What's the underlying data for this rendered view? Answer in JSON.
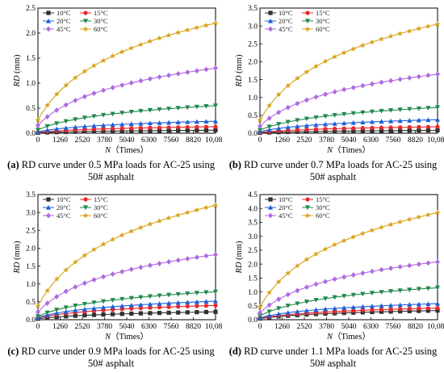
{
  "series_styles": [
    {
      "name": "10°C",
      "color": "#303030",
      "marker": "square"
    },
    {
      "name": "15°C",
      "color": "#e8282a",
      "marker": "circle"
    },
    {
      "name": "20°C",
      "color": "#1f5fd8",
      "marker": "triangle"
    },
    {
      "name": "30°C",
      "color": "#1f8a4c",
      "marker": "triangle-down"
    },
    {
      "name": "45°C",
      "color": "#b06ae0",
      "marker": "diamond"
    },
    {
      "name": "60°C",
      "color": "#d9a31a",
      "marker": "star"
    }
  ],
  "chart_data": [
    {
      "type": "line",
      "caption_letter": "(a)",
      "caption_text": " RD curve under 0.5 MPa loads for AC-25 using 50# asphalt",
      "xlabel": "N（Times）",
      "ylabel_var": "RD",
      "ylabel_unit": " (mm)",
      "xlim": [
        0,
        10080
      ],
      "ylim": [
        0,
        2.5
      ],
      "xticks": [
        0,
        1260,
        2520,
        3780,
        5040,
        6300,
        7560,
        8820,
        10080
      ],
      "xtick_labels": [
        "0",
        "1260",
        "2520",
        "3780",
        "5040",
        "6300",
        "7560",
        "8820",
        "10,080"
      ],
      "yticks": [
        0,
        0.5,
        1.0,
        1.5,
        2.0,
        2.5
      ],
      "ytick_labels": [
        "0.0",
        "0.5",
        "1.0",
        "1.5",
        "2.0",
        "2.5"
      ],
      "series": [
        {
          "name": "10°C",
          "final": 0.06
        },
        {
          "name": "15°C",
          "final": 0.13
        },
        {
          "name": "20°C",
          "final": 0.24
        },
        {
          "name": "30°C",
          "final": 0.55
        },
        {
          "name": "45°C",
          "final": 1.3
        },
        {
          "name": "60°C",
          "final": 2.2
        }
      ]
    },
    {
      "type": "line",
      "caption_letter": "(b)",
      "caption_text": " RD curve under 0.7 MPa loads for AC-25 using 50# asphalt",
      "xlabel": "N（Times）",
      "ylabel_var": "RD",
      "ylabel_unit": " (mm)",
      "xlim": [
        0,
        10080
      ],
      "ylim": [
        0,
        3.5
      ],
      "xticks": [
        0,
        1260,
        2520,
        3780,
        5040,
        6300,
        7560,
        8820,
        10080
      ],
      "xtick_labels": [
        "0",
        "1260",
        "2520",
        "3780",
        "5040",
        "6300",
        "7560",
        "8820",
        "10,080"
      ],
      "yticks": [
        0,
        0.5,
        1.0,
        1.5,
        2.0,
        2.5,
        3.0,
        3.5
      ],
      "ytick_labels": [
        "0.0",
        "0.5",
        "1.0",
        "1.5",
        "2.0",
        "2.5",
        "3.0",
        "3.5"
      ],
      "series": [
        {
          "name": "10°C",
          "final": 0.08
        },
        {
          "name": "15°C",
          "final": 0.18
        },
        {
          "name": "20°C",
          "final": 0.38
        },
        {
          "name": "30°C",
          "final": 0.72
        },
        {
          "name": "45°C",
          "final": 1.65
        },
        {
          "name": "60°C",
          "final": 3.05
        }
      ]
    },
    {
      "type": "line",
      "caption_letter": "(c)",
      "caption_text": " RD curve under 0.9 MPa loads for AC-25 using 50# asphalt",
      "xlabel": "N（Times）",
      "ylabel_var": "RD",
      "ylabel_unit": " (mm)",
      "xlim": [
        0,
        10080
      ],
      "ylim": [
        0,
        3.5
      ],
      "xticks": [
        0,
        1260,
        2520,
        3780,
        5040,
        6300,
        7560,
        8820,
        10080
      ],
      "xtick_labels": [
        "0",
        "1260",
        "2520",
        "3780",
        "5040",
        "6300",
        "7560",
        "8820",
        "10,080"
      ],
      "yticks": [
        0,
        0.5,
        1.0,
        1.5,
        2.0,
        2.5,
        3.0,
        3.5
      ],
      "ytick_labels": [
        "0.0",
        "0.5",
        "1.0",
        "1.5",
        "2.0",
        "2.5",
        "3.0",
        "3.5"
      ],
      "series": [
        {
          "name": "10°C",
          "final": 0.22
        },
        {
          "name": "15°C",
          "final": 0.4
        },
        {
          "name": "20°C",
          "final": 0.52
        },
        {
          "name": "30°C",
          "final": 0.78
        },
        {
          "name": "45°C",
          "final": 1.82
        },
        {
          "name": "60°C",
          "final": 3.2
        }
      ]
    },
    {
      "type": "line",
      "caption_letter": "(d)",
      "caption_text": " RD curve under 1.1 MPa loads for AC-25 using 50# asphalt",
      "xlabel": "N（Times）",
      "ylabel_var": "RD",
      "ylabel_unit": " (mm)",
      "xlim": [
        0,
        10080
      ],
      "ylim": [
        0,
        4.5
      ],
      "xticks": [
        0,
        1260,
        2520,
        3780,
        5040,
        6300,
        7560,
        8820,
        10080
      ],
      "xtick_labels": [
        "0",
        "1260",
        "2520",
        "3780",
        "5040",
        "6300",
        "7560",
        "8820",
        "10,080"
      ],
      "yticks": [
        0,
        0.5,
        1.0,
        1.5,
        2.0,
        2.5,
        3.0,
        3.5,
        4.0,
        4.5
      ],
      "ytick_labels": [
        "0.0",
        "0.5",
        "1.0",
        "1.5",
        "2.0",
        "2.5",
        "3.0",
        "3.5",
        "4.0",
        "4.5"
      ],
      "series": [
        {
          "name": "10°C",
          "final": 0.33
        },
        {
          "name": "15°C",
          "final": 0.42
        },
        {
          "name": "20°C",
          "final": 0.58
        },
        {
          "name": "30°C",
          "final": 1.15
        },
        {
          "name": "45°C",
          "final": 2.08
        },
        {
          "name": "60°C",
          "final": 3.85
        }
      ]
    }
  ]
}
